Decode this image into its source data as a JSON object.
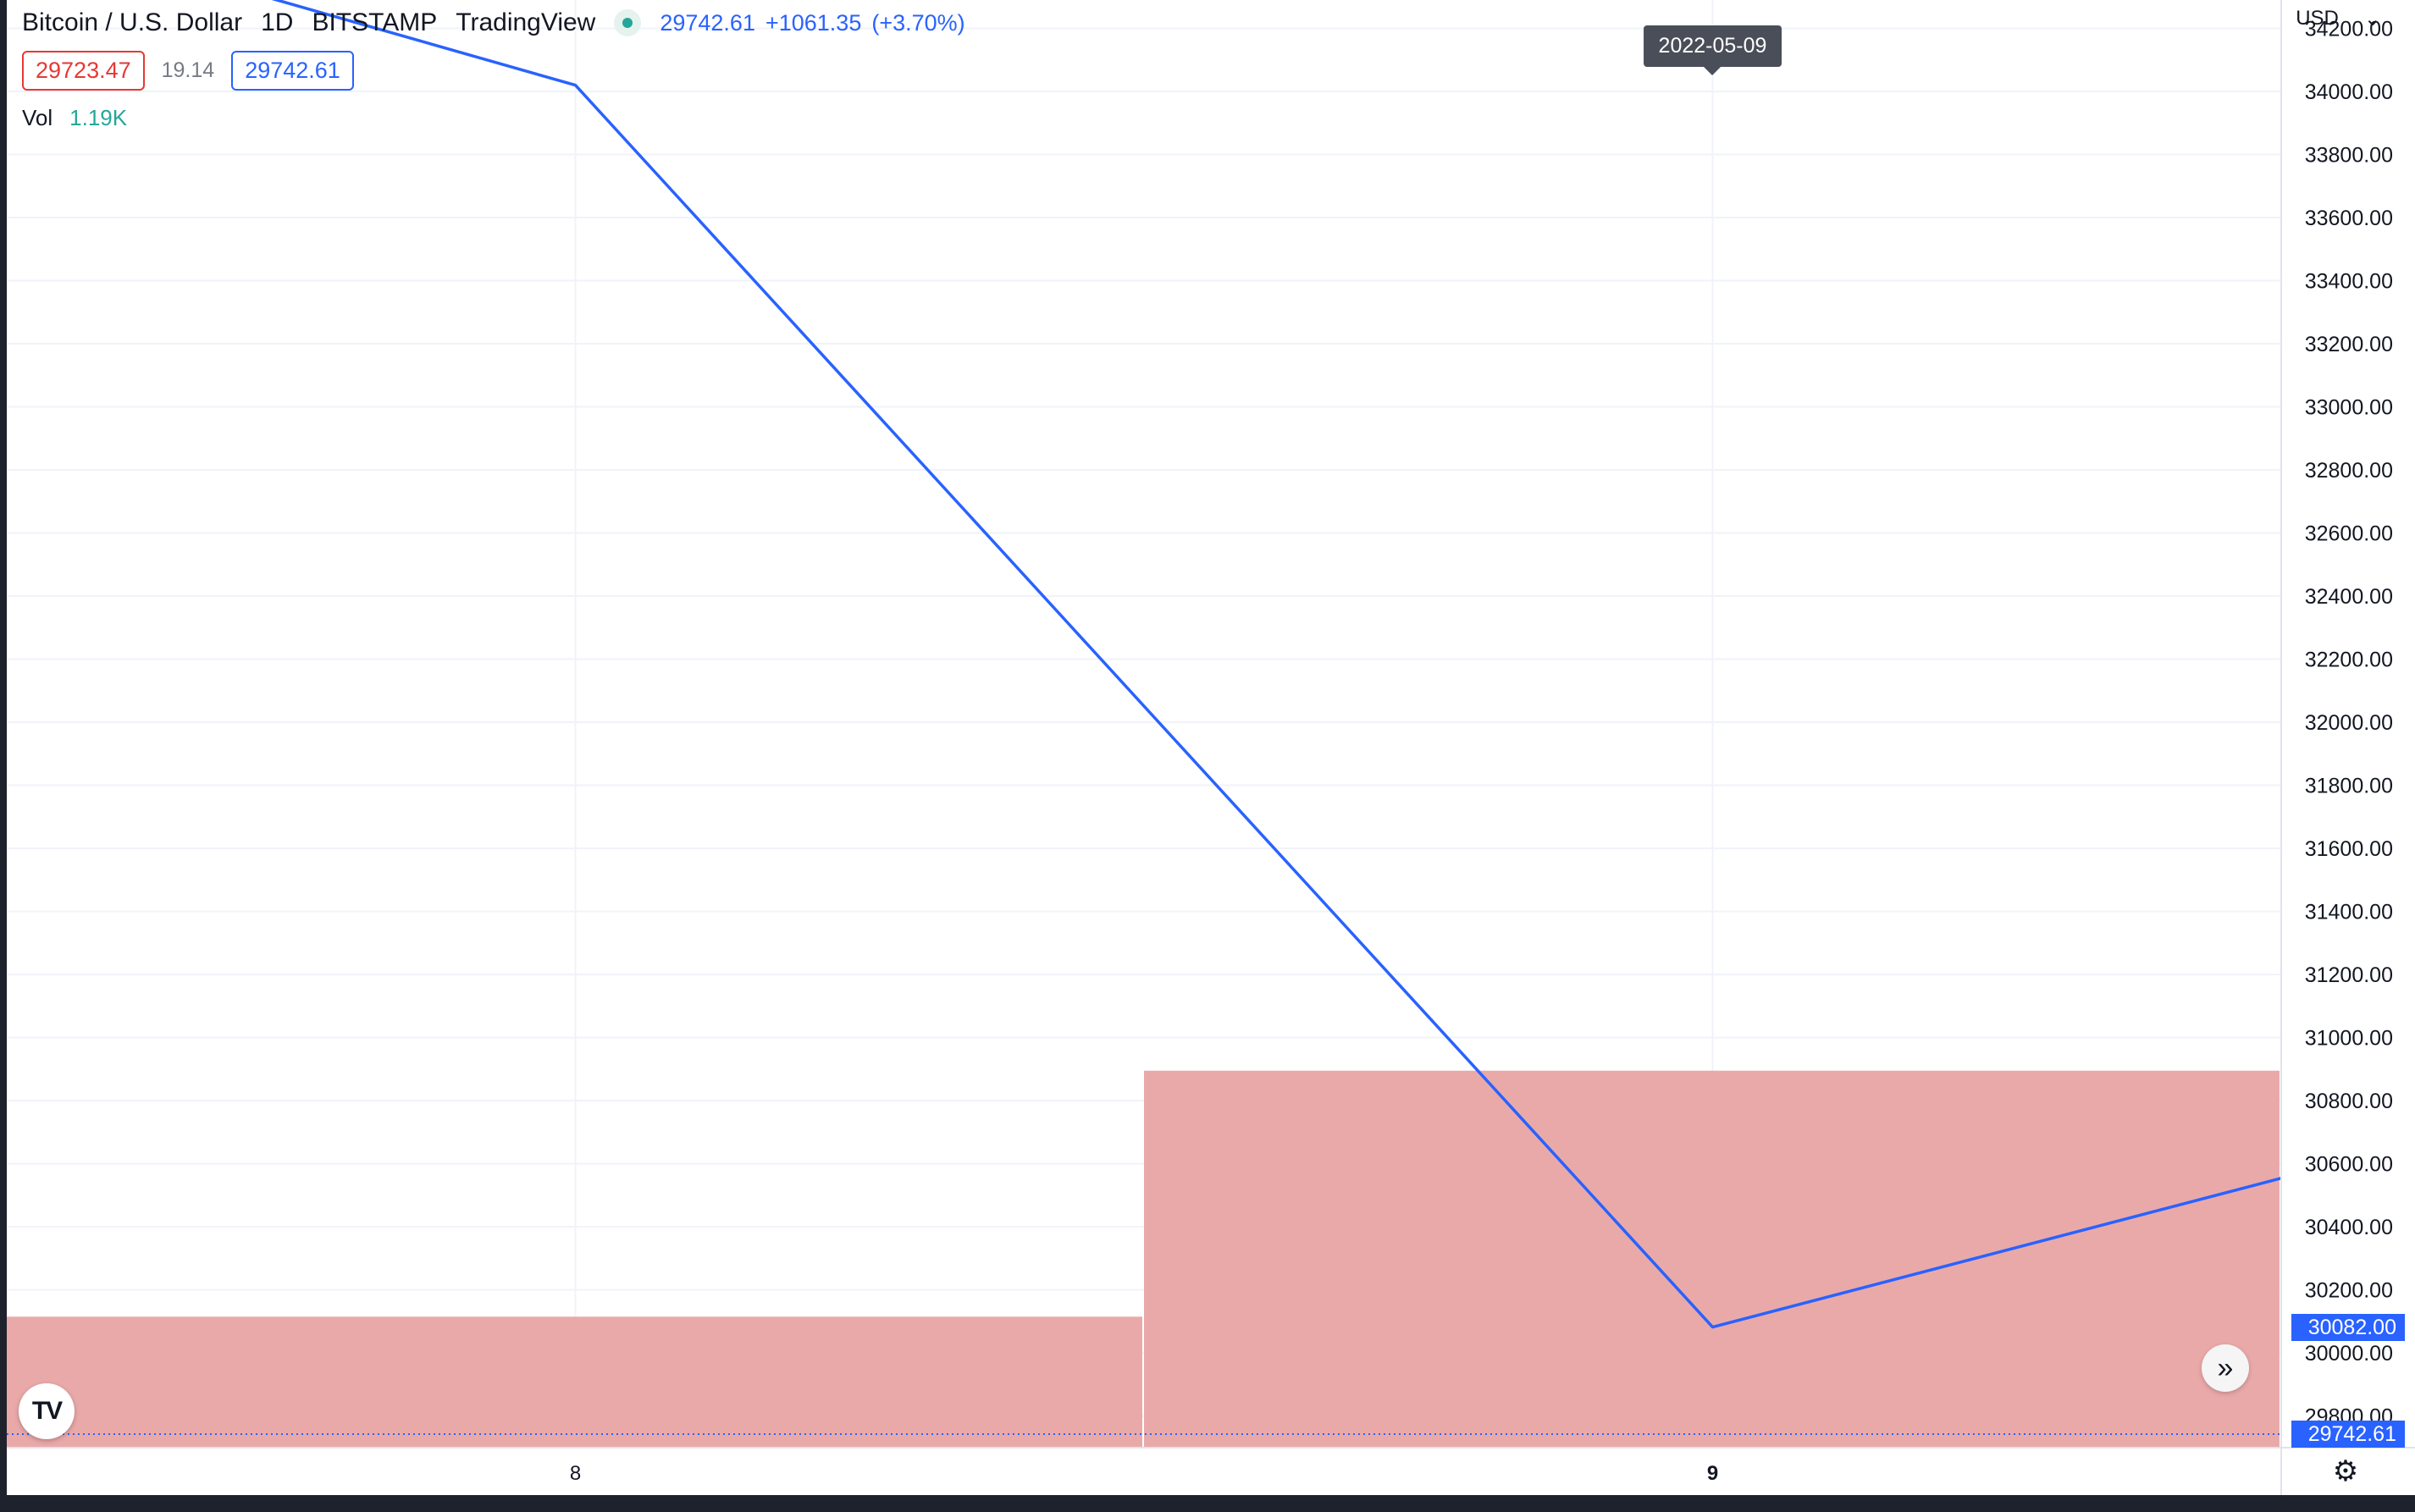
{
  "legend": {
    "symbol": "Bitcoin / U.S. Dollar",
    "interval": "1D",
    "exchange": "BITSTAMP",
    "provider": "TradingView",
    "last": "29742.61",
    "change": "+1061.35",
    "change_pct": "(+3.70%)"
  },
  "row2": {
    "bid": "29723.47",
    "spread": "19.14",
    "ask": "29742.61"
  },
  "volume": {
    "label": "Vol",
    "value": "1.19K"
  },
  "tooltip_date": "2022-05-09",
  "currency": "USD",
  "price_tags": {
    "line": "30082.00",
    "last": "29742.61"
  },
  "colors": {
    "line": "#2962ff",
    "volume": "#eaa9a9",
    "grid": "#f0f3fa"
  },
  "chart_data": {
    "type": "line",
    "ylim": [
      29742.61,
      34290
    ],
    "y_ticks": [
      29800,
      30000,
      30200,
      30400,
      30600,
      30800,
      31000,
      31200,
      31400,
      31600,
      31800,
      32000,
      32200,
      32400,
      32600,
      32800,
      33000,
      33200,
      33400,
      33600,
      33800,
      34000,
      34200
    ],
    "y_tick_labels": [
      "29800.00",
      "30000.00",
      "30200.00",
      "30400.00",
      "30600.00",
      "30800.00",
      "31000.00",
      "31200.00",
      "31400.00",
      "31600.00",
      "31800.00",
      "32000.00",
      "32200.00",
      "32400.00",
      "32600.00",
      "32800.00",
      "33000.00",
      "33200.00",
      "33400.00",
      "33600.00",
      "33800.00",
      "34000.00",
      "34200.00"
    ],
    "x_ticks": [
      {
        "x": 8,
        "label": "8"
      },
      {
        "x": 9,
        "label": "9"
      }
    ],
    "xlim": [
      7.5,
      9.5
    ],
    "series": [
      {
        "type": "line",
        "points": [
          {
            "x": 7.65,
            "y": 34380
          },
          {
            "x": 8,
            "y": 34020
          },
          {
            "x": 9,
            "y": 30082
          },
          {
            "x": 9.5,
            "y": 30554
          }
        ]
      },
      {
        "type": "volume",
        "bars": [
          {
            "x0": 7.5,
            "x1": 8.5,
            "top_price": 30115
          },
          {
            "x0": 8.5,
            "x1": 9.5,
            "top_price": 30895
          }
        ]
      }
    ],
    "last_price_line": 29742.61
  }
}
